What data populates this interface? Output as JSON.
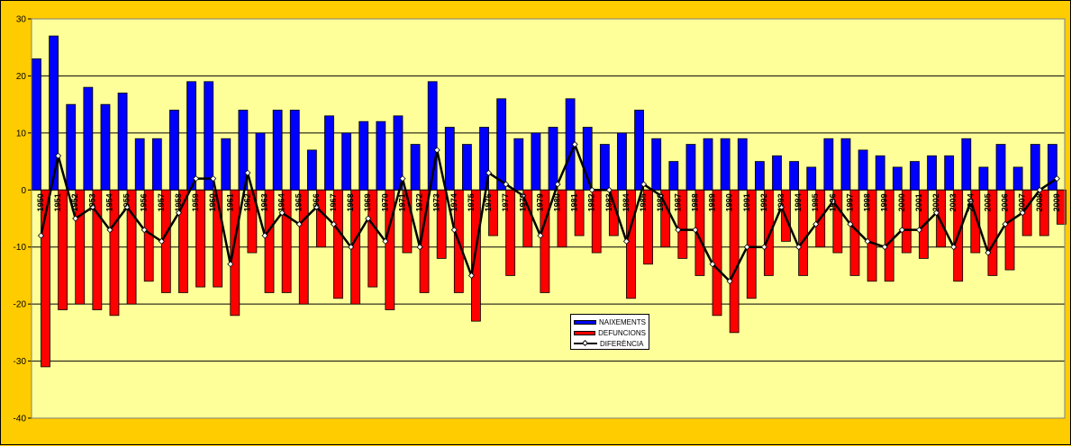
{
  "chart_data": {
    "type": "bar",
    "title": "",
    "xlabel": "",
    "ylabel": "",
    "ylim": [
      -40,
      30
    ],
    "yticks": [
      -40,
      -30,
      -20,
      -10,
      0,
      10,
      20,
      30
    ],
    "grid": true,
    "legend_position": "center-bottom",
    "background_color": "#ffff99",
    "frame_color": "#ffcc00",
    "categories": [
      "1950",
      "1951",
      "1952",
      "1953",
      "1954",
      "1955",
      "1956",
      "1957",
      "1958",
      "1959",
      "1960",
      "1961",
      "1962",
      "1963",
      "1964",
      "1965",
      "1966",
      "1967",
      "1968",
      "1969",
      "1970",
      "1971",
      "1972",
      "1973",
      "1974",
      "1975",
      "1976",
      "1977",
      "1978",
      "1979",
      "1980",
      "1981",
      "1982",
      "1983",
      "1984",
      "1985",
      "1986",
      "1987",
      "1988",
      "1989",
      "1990",
      "1991",
      "1992",
      "1993",
      "1994",
      "1995",
      "1996",
      "1997",
      "1998",
      "1999",
      "2000",
      "2001",
      "2002",
      "2003",
      "2004",
      "2005",
      "2006",
      "2007",
      "2008",
      "2009"
    ],
    "series": [
      {
        "name": "NAIXEMENTS",
        "type": "bar",
        "color": "#0000ff",
        "values": [
          23,
          27,
          15,
          18,
          15,
          17,
          9,
          9,
          14,
          19,
          19,
          9,
          14,
          10,
          14,
          14,
          7,
          13,
          10,
          12,
          12,
          13,
          8,
          19,
          11,
          8,
          11,
          16,
          9,
          10,
          11,
          16,
          11,
          8,
          10,
          14,
          9,
          5,
          8,
          9,
          9,
          9,
          5,
          6,
          5,
          4,
          9,
          9,
          7,
          6,
          4,
          5,
          6,
          6,
          9,
          4,
          8,
          4,
          8,
          8
        ]
      },
      {
        "name": "DEFUNCIONS",
        "type": "bar",
        "color": "#ff0000",
        "values": [
          -31,
          -21,
          -20,
          -21,
          -22,
          -20,
          -16,
          -18,
          -18,
          -17,
          -17,
          -22,
          -11,
          -18,
          -18,
          -20,
          -10,
          -19,
          -20,
          -17,
          -21,
          -11,
          -18,
          -12,
          -18,
          -23,
          -8,
          -15,
          -10,
          -18,
          -10,
          -8,
          -11,
          -8,
          -19,
          -13,
          -10,
          -12,
          -15,
          -22,
          -25,
          -19,
          -15,
          -9,
          -15,
          -10,
          -11,
          -15,
          -16,
          -16,
          -11,
          -12,
          -10,
          -16,
          -11,
          -15,
          -14,
          -8,
          -8,
          -6
        ]
      },
      {
        "name": "DIFERÈNCIA",
        "type": "line",
        "color": "#000000",
        "values": [
          -8,
          6,
          -5,
          -3,
          -7,
          -3,
          -7,
          -9,
          -4,
          2,
          2,
          -13,
          3,
          -8,
          -4,
          -6,
          -3,
          -6,
          -10,
          -5,
          -9,
          2,
          -10,
          7,
          -7,
          -15,
          3,
          1,
          -1,
          -8,
          1,
          8,
          0,
          0,
          -9,
          1,
          -1,
          -7,
          -7,
          -13,
          -16,
          -10,
          -10,
          -3,
          -10,
          -6,
          -2,
          -6,
          -9,
          -10,
          -7,
          -7,
          -4,
          -10,
          -2,
          -11,
          -6,
          -4,
          0,
          2
        ]
      }
    ]
  }
}
